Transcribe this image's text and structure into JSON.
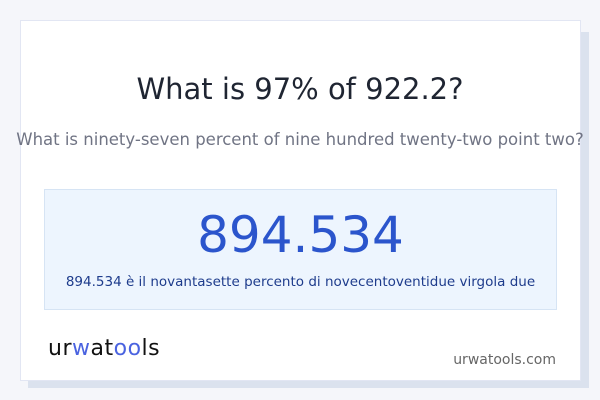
{
  "question": "What is 97% of 922.2?",
  "question_words": "What is ninety-seven percent of nine hundred twenty-two point two?",
  "answer": {
    "value": "894.534",
    "words": "894.534 è il novantasette percento di novecentoventidue virgola due"
  },
  "logo": {
    "text": "urwatools",
    "parts": [
      "ur",
      "w",
      "at",
      "oo",
      "ls"
    ],
    "accent": "#4a63e0"
  },
  "site": "urwatools.com"
}
